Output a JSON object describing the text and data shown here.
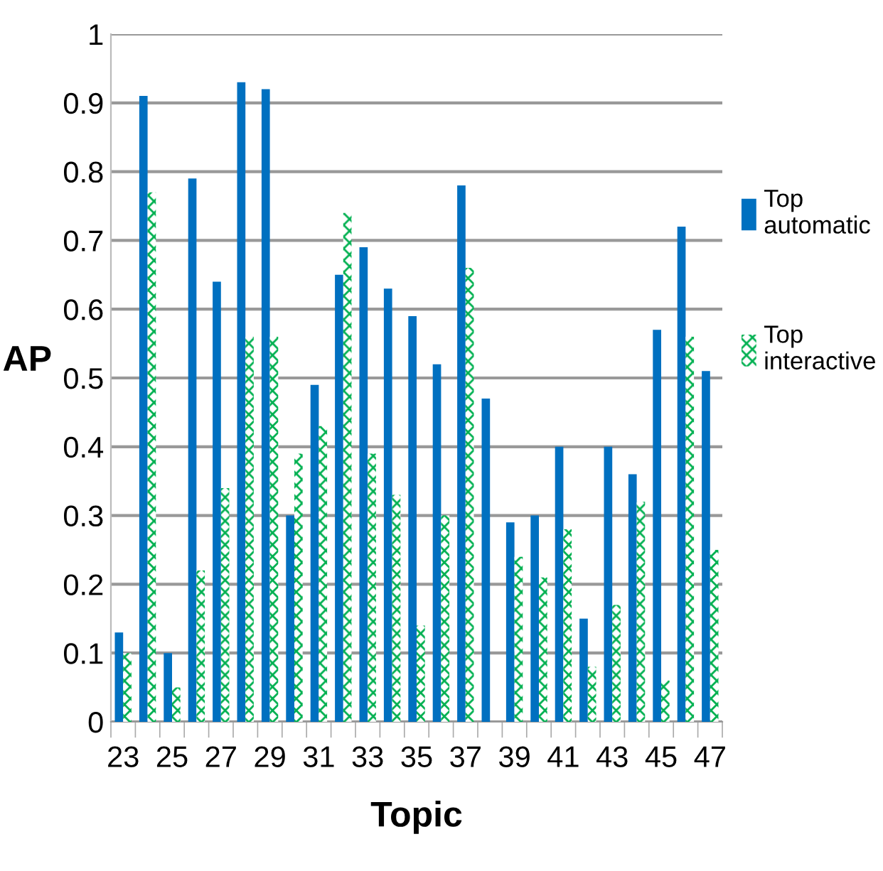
{
  "chart_data": {
    "type": "bar",
    "xlabel": "Topic",
    "ylabel": "AP",
    "categories": [
      "23",
      null,
      "25",
      null,
      "27",
      null,
      "29",
      null,
      "31",
      null,
      "33",
      null,
      "35",
      null,
      "37",
      null,
      "39",
      null,
      "41",
      null,
      "43",
      null,
      "45",
      null,
      "47"
    ],
    "series": [
      {
        "name": "Top automatic",
        "color": "#0070c0",
        "values": [
          0.13,
          0.91,
          0.1,
          0.79,
          0.64,
          0.93,
          0.92,
          0.3,
          0.49,
          0.65,
          0.69,
          0.63,
          0.59,
          0.52,
          0.78,
          0.47,
          0.29,
          0.3,
          0.4,
          0.15,
          0.4,
          0.36,
          0.57,
          0.72,
          0.51
        ]
      },
      {
        "name": "Top interactive",
        "color": "#00b050",
        "values": [
          0.1,
          0.77,
          0.05,
          0.22,
          0.34,
          0.56,
          0.56,
          0.39,
          0.43,
          0.74,
          0.39,
          0.33,
          0.14,
          0.3,
          0.66,
          null,
          0.24,
          0.21,
          0.28,
          0.08,
          0.17,
          0.32,
          0.06,
          0.56,
          0.25
        ]
      }
    ],
    "ylim": [
      0,
      1
    ],
    "yticks": [
      0,
      0.1,
      0.2,
      0.3,
      0.4,
      0.5,
      0.6,
      0.7,
      0.8,
      0.9,
      1
    ],
    "grid": "y",
    "legend": "right"
  }
}
